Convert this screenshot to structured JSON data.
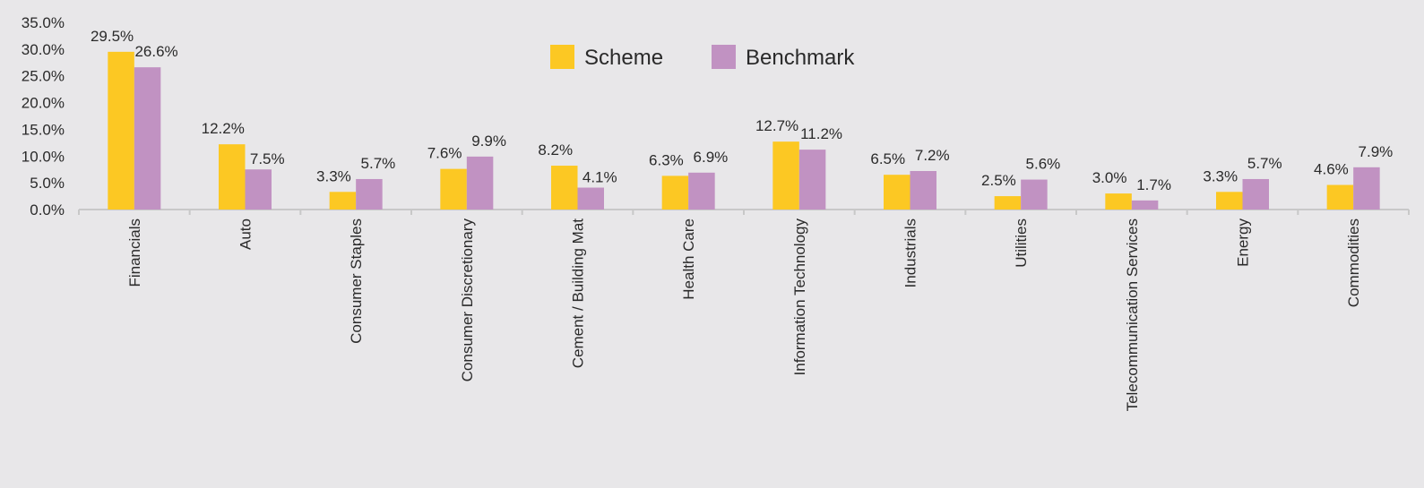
{
  "chart_data": {
    "type": "bar",
    "categories": [
      "Financials",
      "Auto",
      "Consumer Staples",
      "Consumer Discretionary",
      "Cement / Building Mat",
      "Health Care",
      "Information Technology",
      "Industrials",
      "Utilities",
      "Telecommunication Services",
      "Energy",
      "Commodities"
    ],
    "series": [
      {
        "name": "Scheme",
        "color": "#fcc823",
        "values": [
          29.5,
          12.2,
          3.3,
          7.6,
          8.2,
          6.3,
          12.7,
          6.5,
          2.5,
          3.0,
          3.3,
          4.6
        ],
        "labels": [
          "29.5%",
          "12.2%",
          "3.3%",
          "7.6%",
          "8.2%",
          "6.3%",
          "12.7%",
          "6.5%",
          "2.5%",
          "3.0%",
          "3.3%",
          "4.6%"
        ]
      },
      {
        "name": "Benchmark",
        "color": "#c192c2",
        "values": [
          26.6,
          7.5,
          5.7,
          9.9,
          4.1,
          6.9,
          11.2,
          7.2,
          5.6,
          1.7,
          5.7,
          7.9
        ],
        "labels": [
          "26.6%",
          "7.5%",
          "5.7%",
          "9.9%",
          "4.1%",
          "6.9%",
          "11.2%",
          "7.2%",
          "5.6%",
          "1.7%",
          "5.7%",
          "7.9%"
        ]
      }
    ],
    "y_ticks": [
      "0.0%",
      "5.0%",
      "10.0%",
      "15.0%",
      "20.0%",
      "25.0%",
      "30.0%",
      "35.0%"
    ],
    "ylim": [
      0,
      35
    ],
    "grid": false,
    "legend_position": "top-center",
    "title": "",
    "xlabel": "",
    "ylabel": ""
  }
}
